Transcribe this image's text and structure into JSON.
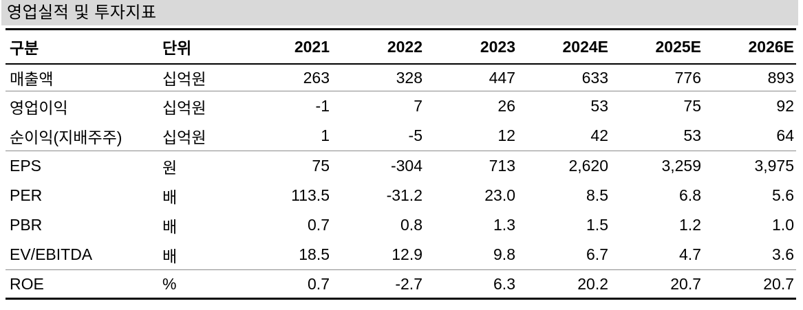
{
  "title": "영업실적 및 투자지표",
  "table": {
    "columns": [
      "구분",
      "단위",
      "2021",
      "2022",
      "2023",
      "2024E",
      "2025E",
      "2026E"
    ],
    "rows": [
      {
        "label": "매출액",
        "unit": "십억원",
        "values": [
          "263",
          "328",
          "447",
          "633",
          "776",
          "893"
        ],
        "group_end": true
      },
      {
        "label": "영업이익",
        "unit": "십억원",
        "values": [
          "-1",
          "7",
          "26",
          "53",
          "75",
          "92"
        ],
        "group_end": false
      },
      {
        "label": "순이익(지배주주)",
        "unit": "십억원",
        "values": [
          "1",
          "-5",
          "12",
          "42",
          "53",
          "64"
        ],
        "group_end": true
      },
      {
        "label": "EPS",
        "unit": "원",
        "values": [
          "75",
          "-304",
          "713",
          "2,620",
          "3,259",
          "3,975"
        ],
        "group_end": false
      },
      {
        "label": "PER",
        "unit": "배",
        "values": [
          "113.5",
          "-31.2",
          "23.0",
          "8.5",
          "6.8",
          "5.6"
        ],
        "group_end": false
      },
      {
        "label": "PBR",
        "unit": "배",
        "values": [
          "0.7",
          "0.8",
          "1.3",
          "1.5",
          "1.2",
          "1.0"
        ],
        "group_end": false
      },
      {
        "label": "EV/EBITDA",
        "unit": "배",
        "values": [
          "18.5",
          "12.9",
          "9.8",
          "6.7",
          "4.7",
          "3.6"
        ],
        "group_end": true
      },
      {
        "label": "ROE",
        "unit": "%",
        "values": [
          "0.7",
          "-2.7",
          "6.3",
          "20.2",
          "20.7",
          "20.7"
        ],
        "group_end": false
      }
    ]
  },
  "colors": {
    "title_bg": "#d9d9d9",
    "rule_heavy": "#000000",
    "rule_thin": "#8a8a8a",
    "text": "#000000"
  }
}
